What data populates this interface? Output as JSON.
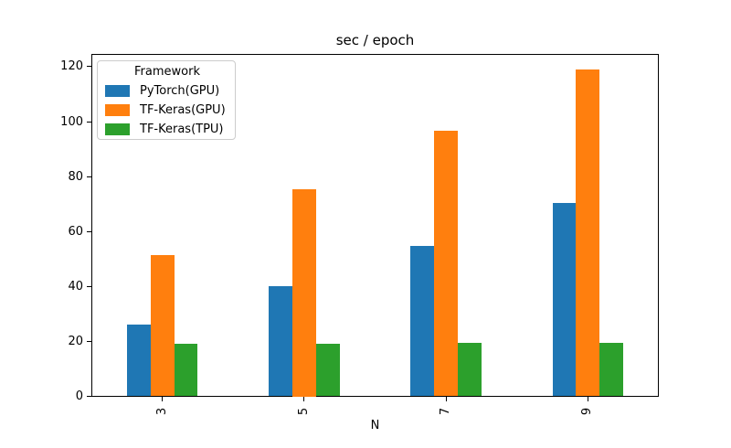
{
  "chart_data": {
    "type": "bar",
    "title": "sec / epoch",
    "xlabel": "N",
    "ylabel": "",
    "categories": [
      "3",
      "5",
      "7",
      "9"
    ],
    "series": [
      {
        "name": "PyTorch(GPU)",
        "color": "#1f77b4",
        "values": [
          26.2,
          40.1,
          54.9,
          70.4
        ]
      },
      {
        "name": "TF-Keras(GPU)",
        "color": "#ff7f0e",
        "values": [
          51.5,
          75.4,
          96.8,
          118.9
        ]
      },
      {
        "name": "TF-Keras(TPU)",
        "color": "#2ca02c",
        "values": [
          19.2,
          19.3,
          19.4,
          19.4
        ]
      }
    ],
    "legend": {
      "title": "Framework",
      "position": "upper left"
    },
    "ylim": [
      0,
      124.8
    ],
    "yticks": [
      0,
      20,
      40,
      60,
      80,
      100,
      120
    ],
    "xtick_rotation": 90,
    "grid": false,
    "axes_color": "#000000",
    "background_color": "#ffffff"
  }
}
